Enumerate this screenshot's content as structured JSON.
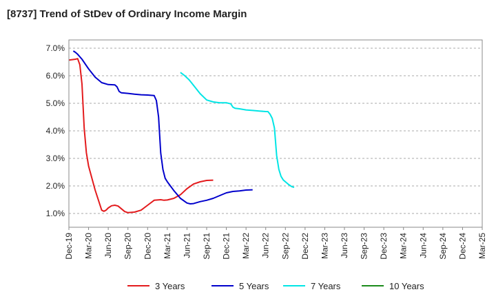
{
  "chart_data": {
    "type": "line",
    "title": "[8737]  Trend of StDev of Ordinary Income Margin",
    "xlabel": "",
    "ylabel": "",
    "x_ticks": [
      "Dec-19",
      "Mar-20",
      "Jun-20",
      "Sep-20",
      "Dec-20",
      "Mar-21",
      "Jun-21",
      "Sep-21",
      "Dec-21",
      "Mar-22",
      "Jun-22",
      "Sep-22",
      "Dec-22",
      "Mar-23",
      "Jun-23",
      "Sep-23",
      "Dec-23",
      "Mar-24",
      "Jun-24",
      "Sep-24",
      "Dec-24",
      "Mar-25"
    ],
    "y_ticks": [
      "1.0%",
      "2.0%",
      "3.0%",
      "4.0%",
      "5.0%",
      "6.0%",
      "7.0%"
    ],
    "ylim": [
      0.5,
      7.3
    ],
    "grid": "horizontal dashed",
    "legend_position": "bottom",
    "series": [
      {
        "name": "3 Years",
        "color": "#e31a1c",
        "points": [
          [
            0,
            6.57
          ],
          [
            1,
            6.6
          ],
          [
            1.33,
            6.62
          ],
          [
            1.67,
            6.4
          ],
          [
            2,
            5.7
          ],
          [
            2.33,
            4.1
          ],
          [
            2.67,
            3.2
          ],
          [
            3,
            2.72
          ],
          [
            4,
            1.85
          ],
          [
            5,
            1.12
          ],
          [
            5.33,
            1.08
          ],
          [
            5.67,
            1.12
          ],
          [
            6,
            1.2
          ],
          [
            6.5,
            1.28
          ],
          [
            7,
            1.3
          ],
          [
            7.5,
            1.27
          ],
          [
            8,
            1.17
          ],
          [
            8.5,
            1.07
          ],
          [
            9,
            1.03
          ],
          [
            10,
            1.05
          ],
          [
            11,
            1.12
          ],
          [
            12,
            1.3
          ],
          [
            13,
            1.48
          ],
          [
            14,
            1.5
          ],
          [
            14.5,
            1.48
          ],
          [
            15,
            1.49
          ],
          [
            16,
            1.55
          ],
          [
            17,
            1.68
          ],
          [
            18,
            1.9
          ],
          [
            19,
            2.07
          ],
          [
            20,
            2.15
          ],
          [
            21,
            2.2
          ],
          [
            22,
            2.21
          ]
        ]
      },
      {
        "name": "5 Years",
        "color": "#0000cc",
        "points": [
          [
            0.67,
            6.9
          ],
          [
            1,
            6.85
          ],
          [
            1.33,
            6.78
          ],
          [
            2,
            6.6
          ],
          [
            3,
            6.25
          ],
          [
            4,
            5.95
          ],
          [
            5,
            5.75
          ],
          [
            6,
            5.68
          ],
          [
            7,
            5.67
          ],
          [
            7.33,
            5.6
          ],
          [
            7.67,
            5.43
          ],
          [
            8,
            5.38
          ],
          [
            9,
            5.36
          ],
          [
            10,
            5.33
          ],
          [
            11,
            5.31
          ],
          [
            12,
            5.3
          ],
          [
            13,
            5.28
          ],
          [
            13.33,
            5.1
          ],
          [
            13.67,
            4.5
          ],
          [
            14,
            3.2
          ],
          [
            14.33,
            2.6
          ],
          [
            14.67,
            2.28
          ],
          [
            15,
            2.15
          ],
          [
            16,
            1.83
          ],
          [
            17,
            1.55
          ],
          [
            18,
            1.38
          ],
          [
            18.5,
            1.35
          ],
          [
            19,
            1.36
          ],
          [
            20,
            1.43
          ],
          [
            21,
            1.48
          ],
          [
            22,
            1.55
          ],
          [
            23,
            1.65
          ],
          [
            24,
            1.75
          ],
          [
            25,
            1.8
          ],
          [
            26,
            1.82
          ],
          [
            27,
            1.85
          ],
          [
            28,
            1.86
          ]
        ]
      },
      {
        "name": "7 Years",
        "color": "#00e5e5",
        "points": [
          [
            17,
            6.12
          ],
          [
            17.67,
            6.0
          ],
          [
            18.33,
            5.85
          ],
          [
            19,
            5.65
          ],
          [
            20,
            5.35
          ],
          [
            21,
            5.12
          ],
          [
            22,
            5.05
          ],
          [
            23,
            5.02
          ],
          [
            24,
            5.02
          ],
          [
            24.67,
            4.98
          ],
          [
            25,
            4.86
          ],
          [
            25.33,
            4.82
          ],
          [
            26,
            4.8
          ],
          [
            27,
            4.76
          ],
          [
            28,
            4.74
          ],
          [
            29,
            4.72
          ],
          [
            30,
            4.7
          ],
          [
            30.33,
            4.7
          ],
          [
            30.67,
            4.6
          ],
          [
            31,
            4.45
          ],
          [
            31.33,
            4.1
          ],
          [
            31.67,
            3.1
          ],
          [
            32,
            2.6
          ],
          [
            32.33,
            2.35
          ],
          [
            32.67,
            2.22
          ],
          [
            33,
            2.15
          ],
          [
            33.5,
            2.05
          ],
          [
            34,
            1.97
          ],
          [
            34.33,
            1.95
          ]
        ]
      },
      {
        "name": "10 Years",
        "color": "#1a8a1a",
        "points": []
      }
    ]
  }
}
